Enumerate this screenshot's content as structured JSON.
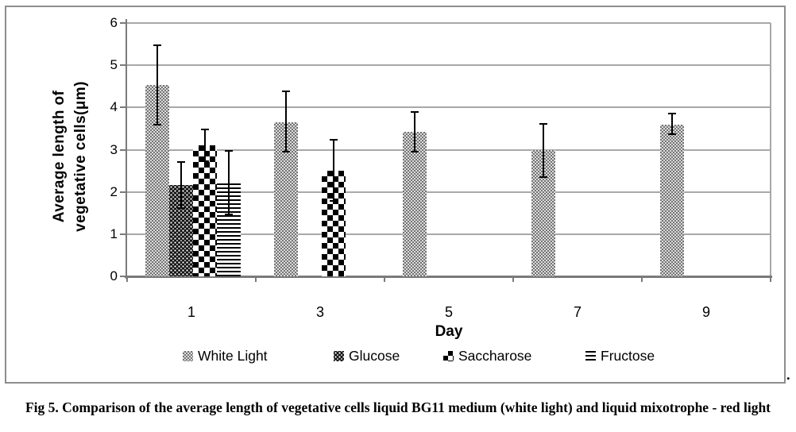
{
  "figure": {
    "caption": "Fig 5. Comparison of the average length of vegetative cells liquid BG11 medium (white light) and liquid mixotrophe - red light",
    "trailing_period": "."
  },
  "chart_data": {
    "type": "bar",
    "title": "",
    "xlabel": "Day",
    "ylabel": "Average length of vegetative cells(μm)",
    "ylabel_lines": [
      "Average length of",
      "vegetative cells(μm)"
    ],
    "categories": [
      "1",
      "3",
      "5",
      "7",
      "9"
    ],
    "ytick_labels": [
      "0",
      "1",
      "2",
      "3",
      "4",
      "5",
      "6"
    ],
    "ylim": [
      0,
      6
    ],
    "grid": true,
    "legend_position": "bottom",
    "error_bars": true,
    "colors": {
      "bar_ink": "#000000",
      "gridline": "#a8a8a8",
      "axis": "#7a7a7a",
      "frame": "#8d8d8d"
    },
    "series": [
      {
        "name": "White Light",
        "pattern": "stipple",
        "values": [
          4.53,
          3.65,
          3.42,
          3.0,
          3.6
        ],
        "error_high": [
          5.48,
          4.38,
          3.9,
          3.62,
          3.85
        ],
        "error_low": [
          3.6,
          2.95,
          2.95,
          2.35,
          3.37
        ]
      },
      {
        "name": "Glucose",
        "pattern": "dense-check",
        "values": [
          2.16,
          null,
          null,
          null,
          null
        ],
        "error_high": [
          2.7,
          null,
          null,
          null,
          null
        ],
        "error_low": [
          1.62,
          null,
          null,
          null,
          null
        ]
      },
      {
        "name": "Saccharose",
        "pattern": "checkerboard",
        "values": [
          3.1,
          2.5,
          null,
          null,
          null
        ],
        "error_high": [
          3.48,
          3.24,
          null,
          null,
          null
        ],
        "error_low": [
          2.73,
          1.78,
          null,
          null,
          null
        ]
      },
      {
        "name": "Fructose",
        "pattern": "hlines",
        "values": [
          2.2,
          null,
          null,
          null,
          null
        ],
        "error_high": [
          2.97,
          null,
          null,
          null,
          null
        ],
        "error_low": [
          1.47,
          null,
          null,
          null,
          null
        ]
      }
    ]
  }
}
